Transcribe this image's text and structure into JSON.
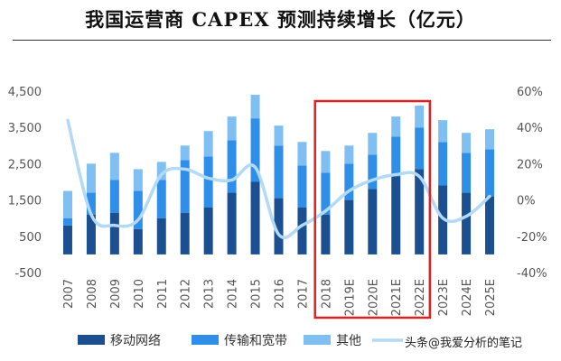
{
  "title": "我国运营商 CAPEX 预测持续增长（亿元）",
  "watermark": "头条@我爱分析的笔记",
  "colors": {
    "mobile": "#1b4f8f",
    "transmission": "#2f8fe8",
    "other": "#7fbff2",
    "growth": "#b2daf7",
    "highlight": "#e02020"
  },
  "chart_data": {
    "type": "bar",
    "stacked": true,
    "categories": [
      "2007",
      "2008",
      "2009",
      "2010",
      "2011",
      "2012",
      "2013",
      "2014",
      "2015",
      "2016",
      "2017",
      "2018",
      "2019E",
      "2020E",
      "2021E",
      "2022E",
      "2023E",
      "2024E",
      "2025E"
    ],
    "series": [
      {
        "name": "移动网络",
        "axis": "left",
        "values": [
          800,
          1100,
          1150,
          700,
          1000,
          1150,
          1300,
          1700,
          2000,
          1550,
          1300,
          1100,
          1500,
          1800,
          2150,
          2350,
          1900,
          1700,
          1600
        ]
      },
      {
        "name": "传输和宽带",
        "axis": "left",
        "values": [
          200,
          600,
          900,
          1050,
          1050,
          1450,
          1400,
          1450,
          1750,
          1450,
          1150,
          1150,
          1000,
          950,
          1100,
          1150,
          1200,
          1100,
          1300
        ]
      },
      {
        "name": "其他",
        "axis": "left",
        "values": [
          750,
          800,
          750,
          600,
          500,
          400,
          700,
          650,
          650,
          550,
          650,
          600,
          500,
          600,
          550,
          600,
          600,
          550,
          550
        ]
      },
      {
        "name": "",
        "type": "line",
        "axis": "right",
        "values": [
          44,
          -8,
          -14,
          -11,
          14,
          17,
          12,
          11,
          18,
          -19,
          -14,
          -6,
          5,
          11,
          14,
          13,
          -10,
          -9,
          2
        ]
      }
    ],
    "y_left": {
      "min": -500,
      "max": 4500,
      "ticks": [
        "-500",
        "500",
        "1,500",
        "2,500",
        "3,500",
        "4,500"
      ]
    },
    "y_right": {
      "min": -40,
      "max": 60,
      "ticks": [
        "-40%",
        "-20%",
        "0%",
        "20%",
        "40%",
        "60%"
      ]
    },
    "highlight_range": [
      "2018",
      "2022E"
    ],
    "grid": false,
    "legend": "bottom",
    "legend_items": [
      {
        "label": "移动网络",
        "kind": "box",
        "color_key": "mobile"
      },
      {
        "label": "传输和宽带",
        "kind": "box",
        "color_key": "transmission"
      },
      {
        "label": "其他",
        "kind": "box",
        "color_key": "other"
      },
      {
        "label": "",
        "kind": "line",
        "color_key": "growth"
      }
    ]
  }
}
